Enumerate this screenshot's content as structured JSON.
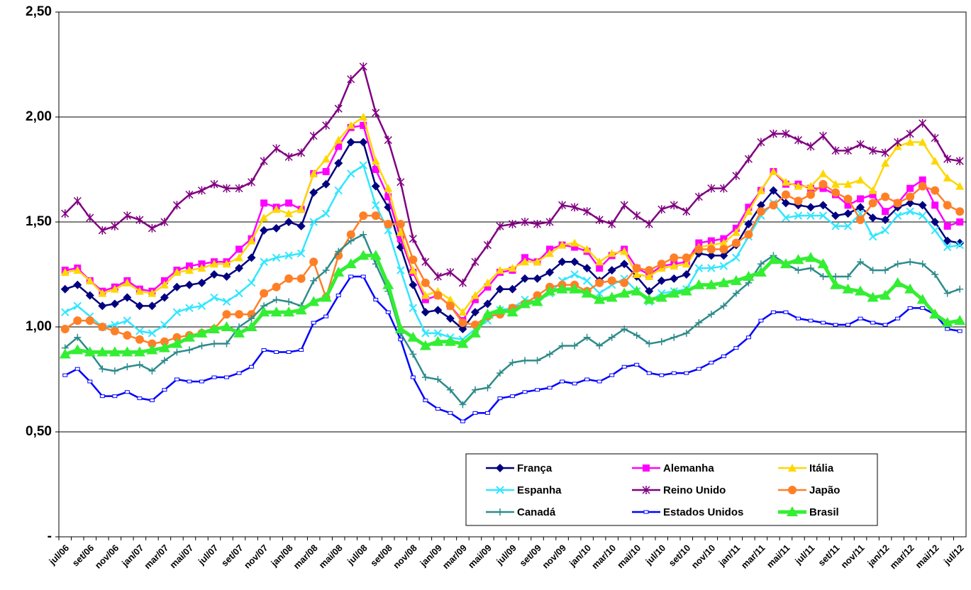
{
  "chart_data": {
    "type": "line",
    "categories": [
      "jul/06",
      null,
      "set/06",
      null,
      "nov/06",
      null,
      "jan/07",
      null,
      "mar/07",
      null,
      "mai/07",
      null,
      "jul/07",
      null,
      "set/07",
      null,
      "nov/07",
      null,
      "jan/08",
      null,
      "mar/08",
      null,
      "mai/08",
      null,
      "jul/08",
      null,
      "set/08",
      null,
      "nov/08",
      null,
      "jan/09",
      null,
      "mar/09",
      null,
      "mai/09",
      null,
      "jul/09",
      null,
      "set/09",
      null,
      "nov/09",
      null,
      "jan/10",
      null,
      "mar/10",
      null,
      "mai/10",
      null,
      "jul/10",
      null,
      "set/10",
      null,
      "nov/10",
      null,
      "jan/11",
      null,
      "mar/11",
      null,
      "mai/11",
      null,
      "jul/11",
      null,
      "set/11",
      null,
      "nov/11",
      null,
      "jan/12",
      null,
      "mar/12",
      null,
      "mai/12",
      null,
      "jul/12"
    ],
    "ylim": [
      0,
      2.5
    ],
    "yticks": [
      {
        "value": 0,
        "label": "-"
      },
      {
        "value": 0.5,
        "label": "0,50"
      },
      {
        "value": 1,
        "label": "1,00"
      },
      {
        "value": 1.5,
        "label": "1,50"
      },
      {
        "value": 2,
        "label": "2,00"
      },
      {
        "value": 2.5,
        "label": "2,50"
      }
    ],
    "grid": true,
    "legend": "bottom-right",
    "series": [
      {
        "name": "França",
        "color": "#000080",
        "marker": "diamond",
        "values": [
          1.18,
          1.2,
          1.15,
          1.1,
          1.11,
          1.14,
          1.1,
          1.1,
          1.14,
          1.19,
          1.2,
          1.21,
          1.25,
          1.24,
          1.28,
          1.33,
          1.46,
          1.47,
          1.5,
          1.48,
          1.64,
          1.68,
          1.78,
          1.88,
          1.88,
          1.67,
          1.57,
          1.38,
          1.2,
          1.07,
          1.08,
          1.04,
          0.99,
          1.07,
          1.11,
          1.18,
          1.18,
          1.23,
          1.23,
          1.26,
          1.31,
          1.31,
          1.28,
          1.22,
          1.27,
          1.3,
          1.24,
          1.17,
          1.22,
          1.23,
          1.25,
          1.35,
          1.34,
          1.34,
          1.39,
          1.49,
          1.58,
          1.65,
          1.59,
          1.58,
          1.57,
          1.58,
          1.53,
          1.54,
          1.57,
          1.52,
          1.51,
          1.57,
          1.59,
          1.58,
          1.5,
          1.41,
          1.4
        ]
      },
      {
        "name": "Alemanha",
        "color": "#ff00ff",
        "marker": "square",
        "values": [
          1.27,
          1.28,
          1.22,
          1.17,
          1.19,
          1.22,
          1.18,
          1.17,
          1.22,
          1.27,
          1.29,
          1.3,
          1.31,
          1.31,
          1.37,
          1.42,
          1.59,
          1.57,
          1.59,
          1.56,
          1.73,
          1.74,
          1.86,
          1.95,
          1.96,
          1.75,
          1.62,
          1.42,
          1.26,
          1.13,
          1.15,
          1.1,
          1.03,
          1.13,
          1.19,
          1.26,
          1.27,
          1.33,
          1.31,
          1.37,
          1.39,
          1.38,
          1.36,
          1.28,
          1.34,
          1.37,
          1.28,
          1.25,
          1.29,
          1.3,
          1.31,
          1.4,
          1.41,
          1.42,
          1.47,
          1.57,
          1.65,
          1.74,
          1.68,
          1.68,
          1.66,
          1.66,
          1.63,
          1.58,
          1.61,
          1.63,
          1.55,
          1.59,
          1.66,
          1.7,
          1.58,
          1.48,
          1.5
        ]
      },
      {
        "name": "Itália",
        "color": "#ffd700",
        "marker": "triangle",
        "values": [
          1.26,
          1.27,
          1.22,
          1.16,
          1.18,
          1.21,
          1.17,
          1.16,
          1.2,
          1.26,
          1.27,
          1.28,
          1.3,
          1.3,
          1.33,
          1.41,
          1.52,
          1.56,
          1.54,
          1.56,
          1.73,
          1.8,
          1.89,
          1.96,
          2.0,
          1.79,
          1.66,
          1.45,
          1.27,
          1.15,
          1.17,
          1.13,
          1.07,
          1.15,
          1.21,
          1.27,
          1.28,
          1.31,
          1.31,
          1.35,
          1.39,
          1.4,
          1.37,
          1.31,
          1.35,
          1.36,
          1.25,
          1.24,
          1.28,
          1.29,
          1.3,
          1.38,
          1.39,
          1.4,
          1.45,
          1.55,
          1.65,
          1.74,
          1.69,
          1.67,
          1.67,
          1.73,
          1.68,
          1.68,
          1.7,
          1.65,
          1.78,
          1.86,
          1.88,
          1.88,
          1.79,
          1.71,
          1.67
        ]
      },
      {
        "name": "Espanha",
        "color": "#33e6ff",
        "marker": "x",
        "values": [
          1.07,
          1.1,
          1.05,
          1.0,
          1.01,
          1.03,
          0.98,
          0.97,
          1.01,
          1.07,
          1.09,
          1.1,
          1.14,
          1.12,
          1.16,
          1.21,
          1.31,
          1.33,
          1.34,
          1.35,
          1.5,
          1.54,
          1.65,
          1.73,
          1.77,
          1.58,
          1.46,
          1.27,
          1.09,
          0.97,
          0.97,
          0.95,
          0.94,
          0.99,
          1.03,
          1.08,
          1.09,
          1.13,
          1.12,
          1.16,
          1.22,
          1.25,
          1.22,
          1.16,
          1.2,
          1.23,
          1.17,
          1.12,
          1.16,
          1.17,
          1.18,
          1.28,
          1.28,
          1.29,
          1.33,
          1.43,
          1.53,
          1.59,
          1.52,
          1.53,
          1.53,
          1.53,
          1.48,
          1.48,
          1.54,
          1.43,
          1.46,
          1.53,
          1.55,
          1.53,
          1.46,
          1.38,
          1.39
        ]
      },
      {
        "name": "Reino Unido",
        "color": "#800080",
        "marker": "star",
        "values": [
          1.54,
          1.6,
          1.52,
          1.46,
          1.48,
          1.53,
          1.51,
          1.47,
          1.5,
          1.58,
          1.63,
          1.65,
          1.68,
          1.66,
          1.66,
          1.69,
          1.79,
          1.85,
          1.81,
          1.83,
          1.91,
          1.96,
          2.04,
          2.18,
          2.24,
          2.02,
          1.89,
          1.69,
          1.42,
          1.31,
          1.24,
          1.26,
          1.21,
          1.31,
          1.39,
          1.48,
          1.49,
          1.5,
          1.49,
          1.5,
          1.58,
          1.57,
          1.55,
          1.51,
          1.49,
          1.58,
          1.53,
          1.49,
          1.56,
          1.58,
          1.55,
          1.62,
          1.66,
          1.66,
          1.72,
          1.8,
          1.88,
          1.92,
          1.92,
          1.89,
          1.86,
          1.91,
          1.84,
          1.84,
          1.87,
          1.84,
          1.83,
          1.88,
          1.92,
          1.97,
          1.9,
          1.8,
          1.79
        ]
      },
      {
        "name": "Japão",
        "color": "#ff7f27",
        "marker": "circle",
        "values": [
          0.99,
          1.03,
          1.03,
          1.0,
          0.98,
          0.96,
          0.94,
          0.92,
          0.93,
          0.95,
          0.96,
          0.97,
          0.99,
          1.06,
          1.06,
          1.06,
          1.16,
          1.19,
          1.23,
          1.23,
          1.31,
          1.14,
          1.34,
          1.44,
          1.53,
          1.53,
          1.49,
          1.49,
          1.32,
          1.21,
          1.15,
          1.1,
          1.02,
          1.01,
          1.05,
          1.06,
          1.09,
          1.11,
          1.15,
          1.19,
          1.2,
          1.2,
          1.17,
          1.21,
          1.22,
          1.21,
          1.28,
          1.27,
          1.3,
          1.33,
          1.33,
          1.37,
          1.37,
          1.37,
          1.4,
          1.44,
          1.55,
          1.58,
          1.63,
          1.6,
          1.63,
          1.68,
          1.64,
          1.61,
          1.51,
          1.59,
          1.62,
          1.59,
          1.62,
          1.67,
          1.65,
          1.58,
          1.55
        ]
      },
      {
        "name": "Canadá",
        "color": "#2e8b8b",
        "marker": "plus",
        "values": [
          0.9,
          0.95,
          0.88,
          0.8,
          0.79,
          0.81,
          0.82,
          0.79,
          0.84,
          0.88,
          0.89,
          0.91,
          0.92,
          0.92,
          1.0,
          1.04,
          1.1,
          1.13,
          1.12,
          1.1,
          1.22,
          1.27,
          1.36,
          1.41,
          1.44,
          1.3,
          1.17,
          0.97,
          0.87,
          0.76,
          0.75,
          0.7,
          0.63,
          0.7,
          0.71,
          0.78,
          0.83,
          0.84,
          0.84,
          0.87,
          0.91,
          0.91,
          0.95,
          0.91,
          0.95,
          0.99,
          0.96,
          0.92,
          0.93,
          0.95,
          0.97,
          1.02,
          1.06,
          1.1,
          1.16,
          1.21,
          1.3,
          1.34,
          1.3,
          1.27,
          1.28,
          1.24,
          1.24,
          1.24,
          1.31,
          1.27,
          1.27,
          1.3,
          1.31,
          1.3,
          1.25,
          1.16,
          1.18
        ]
      },
      {
        "name": "Estados Unidos",
        "color": "#0000ff",
        "marker": "dash",
        "values": [
          0.77,
          0.8,
          0.74,
          0.67,
          0.67,
          0.69,
          0.66,
          0.65,
          0.7,
          0.75,
          0.74,
          0.74,
          0.76,
          0.76,
          0.78,
          0.81,
          0.89,
          0.88,
          0.88,
          0.89,
          1.02,
          1.05,
          1.15,
          1.24,
          1.24,
          1.13,
          1.07,
          0.94,
          0.76,
          0.65,
          0.61,
          0.59,
          0.55,
          0.59,
          0.59,
          0.66,
          0.67,
          0.69,
          0.7,
          0.71,
          0.74,
          0.73,
          0.75,
          0.74,
          0.77,
          0.81,
          0.82,
          0.78,
          0.77,
          0.78,
          0.78,
          0.8,
          0.83,
          0.86,
          0.9,
          0.95,
          1.03,
          1.07,
          1.07,
          1.04,
          1.03,
          1.02,
          1.01,
          1.01,
          1.04,
          1.02,
          1.01,
          1.04,
          1.09,
          1.09,
          1.06,
          0.99,
          0.98
        ]
      },
      {
        "name": "Brasil",
        "color": "#33ee33",
        "marker": "big-triangle",
        "values": [
          0.87,
          0.89,
          0.88,
          0.88,
          0.88,
          0.88,
          0.88,
          0.89,
          0.9,
          0.92,
          0.95,
          0.97,
          0.99,
          1.0,
          0.97,
          1.0,
          1.07,
          1.07,
          1.07,
          1.08,
          1.12,
          1.14,
          1.26,
          1.3,
          1.34,
          1.34,
          1.2,
          0.99,
          0.95,
          0.91,
          0.93,
          0.93,
          0.92,
          0.97,
          1.06,
          1.08,
          1.07,
          1.11,
          1.12,
          1.17,
          1.18,
          1.18,
          1.16,
          1.13,
          1.14,
          1.16,
          1.17,
          1.13,
          1.14,
          1.16,
          1.17,
          1.2,
          1.2,
          1.21,
          1.22,
          1.24,
          1.26,
          1.32,
          1.3,
          1.32,
          1.33,
          1.3,
          1.2,
          1.18,
          1.17,
          1.14,
          1.15,
          1.21,
          1.18,
          1.13,
          1.06,
          1.02,
          1.03
        ]
      }
    ]
  }
}
